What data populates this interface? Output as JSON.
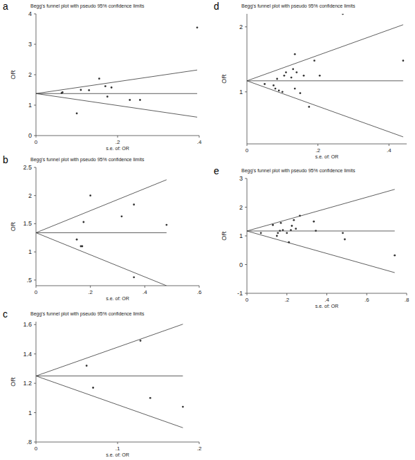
{
  "chart_data": [
    {
      "type": "scatter",
      "panel": "a",
      "title": "Begg's funnel plot with pseudo 95% confidence limits",
      "x_label": "s.e. of: OR",
      "y_label": "OR",
      "color": "#333333",
      "marker": "circle",
      "xlim": [
        0,
        0.4
      ],
      "xticks": [
        0,
        {
          "value": 0.2,
          "label": ".2"
        },
        {
          "value": 0.4,
          "label": ".4"
        }
      ],
      "ylim": [
        0,
        4
      ],
      "yticks": [
        0,
        1,
        2,
        3,
        4
      ],
      "pooled": 1.38,
      "pseudo_ci_z": 1.96,
      "x": [
        0.063,
        0.065,
        0.1,
        0.11,
        0.13,
        0.155,
        0.17,
        0.175,
        0.185,
        0.23,
        0.255,
        0.395
      ],
      "values": [
        1.4,
        1.42,
        0.73,
        1.5,
        1.49,
        1.87,
        1.62,
        1.28,
        1.58,
        1.17,
        1.17,
        3.55
      ]
    },
    {
      "type": "scatter",
      "panel": "b",
      "title": "Begg's funnel plot with pseudo 95% confidence limits",
      "x_label": "s.e. of: OR",
      "y_label": "OR",
      "color": "#333333",
      "marker": "circle",
      "xlim": [
        0,
        0.6
      ],
      "xticks": [
        0,
        {
          "value": 0.2,
          "label": ".2"
        },
        {
          "value": 0.4,
          "label": ".4"
        },
        {
          "value": 0.6,
          "label": ".6"
        }
      ],
      "ylim": [
        0.4,
        2.5
      ],
      "yticks": [
        {
          "value": 0.5,
          "label": ".5"
        },
        1,
        1.5,
        2,
        2.5
      ],
      "pooled": 1.34,
      "pseudo_ci_z": 1.96,
      "x": [
        0.15,
        0.165,
        0.17,
        0.175,
        0.2,
        0.315,
        0.36,
        0.36,
        0.48
      ],
      "values": [
        1.22,
        1.1,
        1.1,
        1.53,
        2.0,
        1.63,
        1.84,
        0.55,
        1.48
      ]
    },
    {
      "type": "scatter",
      "panel": "c",
      "title": "Begg's funnel plot with pseudo 95% confidence limits",
      "x_label": "s.e. of: OR",
      "y_label": "OR",
      "color": "#333333",
      "marker": "circle",
      "xlim": [
        0,
        0.2
      ],
      "xticks": [
        0,
        {
          "value": 0.1,
          "label": ".1"
        },
        {
          "value": 0.2,
          "label": ".2"
        }
      ],
      "ylim": [
        0.8,
        1.62
      ],
      "yticks": [
        {
          "value": 0.8,
          "label": ".8"
        },
        1,
        1.2,
        1.4,
        1.6
      ],
      "pooled": 1.25,
      "pseudo_ci_z": 1.96,
      "x": [
        0.062,
        0.07,
        0.128,
        0.14,
        0.18
      ],
      "values": [
        1.32,
        1.17,
        1.49,
        1.1,
        1.04
      ]
    },
    {
      "type": "scatter",
      "panel": "d",
      "title": "Begg's funnel plot with pseudo 95% confidence limits",
      "x_label": "s.e. of: OR",
      "y_label": "OR",
      "color": "#333333",
      "marker": "circle",
      "xlim": [
        0,
        0.45
      ],
      "xticks": [
        0,
        {
          "value": 0.2,
          "label": ".2"
        },
        {
          "value": 0.4,
          "label": ".4"
        }
      ],
      "ylim": [
        0.2,
        2.2
      ],
      "yticks": [
        1,
        2
      ],
      "pooled": 1.17,
      "pseudo_ci_z": 1.96,
      "x": [
        0.05,
        0.075,
        0.08,
        0.085,
        0.09,
        0.1,
        0.105,
        0.11,
        0.125,
        0.13,
        0.135,
        0.135,
        0.14,
        0.15,
        0.16,
        0.175,
        0.19,
        0.205,
        0.27,
        0.44
      ],
      "values": [
        1.12,
        1.1,
        1.05,
        1.2,
        1.02,
        1.0,
        1.25,
        1.3,
        1.22,
        1.35,
        1.58,
        1.05,
        1.3,
        0.98,
        1.25,
        0.77,
        1.48,
        1.25,
        2.2,
        1.48
      ]
    },
    {
      "type": "scatter",
      "panel": "e",
      "title": "Begg's funnel plot with pseudo 95% confidence limits",
      "x_label": "s.e. of: OR",
      "y_label": "OR",
      "color": "#333333",
      "marker": "circle",
      "xlim": [
        0,
        0.8
      ],
      "xticks": [
        0,
        {
          "value": 0.2,
          "label": ".2"
        },
        {
          "value": 0.4,
          "label": ".4"
        },
        {
          "value": 0.6,
          "label": ".6"
        },
        {
          "value": 0.8,
          "label": ".8"
        }
      ],
      "ylim": [
        -1,
        3
      ],
      "yticks": [
        -1,
        0,
        1,
        2,
        3
      ],
      "pooled": 1.17,
      "pseudo_ci_z": 1.96,
      "x": [
        0.07,
        0.13,
        0.15,
        0.155,
        0.165,
        0.17,
        0.18,
        0.2,
        0.21,
        0.22,
        0.225,
        0.235,
        0.245,
        0.265,
        0.335,
        0.345,
        0.48,
        0.49,
        0.74
      ],
      "values": [
        1.1,
        1.38,
        1.0,
        1.1,
        1.18,
        1.45,
        1.2,
        1.1,
        0.78,
        1.2,
        1.35,
        1.55,
        1.25,
        1.7,
        1.5,
        1.18,
        1.1,
        0.88,
        0.32
      ]
    }
  ]
}
